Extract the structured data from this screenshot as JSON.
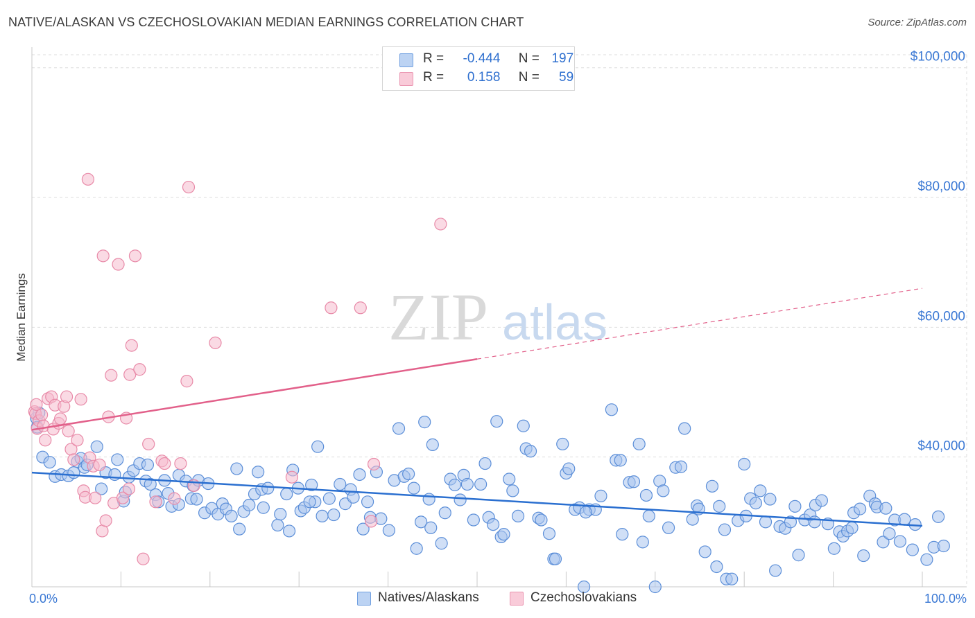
{
  "title": "NATIVE/ALASKAN VS CZECHOSLOVAKIAN MEDIAN EARNINGS CORRELATION CHART",
  "source": "Source: ZipAtlas.com",
  "watermark": {
    "zip": "ZIP",
    "atlas": "atlas"
  },
  "legend": {
    "rows": [
      {
        "r_label": "R =",
        "r_value": "-0.444",
        "n_label": "N =",
        "n_value": "197"
      },
      {
        "r_label": "R =",
        "r_value": "0.158",
        "n_label": "N =",
        "n_value": "59"
      }
    ]
  },
  "colors": {
    "blue_fill": "#a9c5ef",
    "blue_stroke": "#5b8ed8",
    "blue_line": "#2a6fd0",
    "pink_fill": "#f6bccd",
    "pink_stroke": "#e88aa8",
    "pink_line": "#e2608a",
    "axis_label": "#3a78d4",
    "grid": "#dddddd"
  },
  "chart_data": {
    "type": "scatter",
    "title": "NATIVE/ALASKAN VS CZECHOSLOVAKIAN MEDIAN EARNINGS CORRELATION CHART",
    "xlabel": "",
    "ylabel": "Median Earnings",
    "xlim": [
      0,
      100
    ],
    "ylim": [
      20000,
      102000
    ],
    "x_tick_labels": [
      "0.0%",
      "100.0%"
    ],
    "y_ticks": [
      40000,
      60000,
      80000,
      100000
    ],
    "y_tick_labels": [
      "$40,000",
      "$60,000",
      "$80,000",
      "$100,000"
    ],
    "grid": true,
    "legend_position": "top-center",
    "series": [
      {
        "name": "Natives/Alaskans",
        "color": "#a9c5ef",
        "R": -0.444,
        "N": 197,
        "trend": {
          "x": [
            0,
            100
          ],
          "y": [
            37600,
            29400
          ],
          "dashed_from": null
        },
        "points": [
          [
            0.5,
            46000
          ],
          [
            0.6,
            44600
          ],
          [
            0.8,
            46800
          ],
          [
            1.2,
            40000
          ],
          [
            2,
            39200
          ],
          [
            2.6,
            37000
          ],
          [
            3.3,
            37300
          ],
          [
            4.1,
            37100
          ],
          [
            4.7,
            37600
          ],
          [
            5.1,
            39300
          ],
          [
            5.5,
            39800
          ],
          [
            5.9,
            38400
          ],
          [
            6.2,
            38800
          ],
          [
            7.3,
            41600
          ],
          [
            7.8,
            35100
          ],
          [
            8.3,
            37600
          ],
          [
            9.3,
            37300
          ],
          [
            9.6,
            39600
          ],
          [
            10.3,
            33200
          ],
          [
            10.5,
            34600
          ],
          [
            10.9,
            36900
          ],
          [
            11.4,
            37900
          ],
          [
            12.1,
            39000
          ],
          [
            12.8,
            36300
          ],
          [
            13,
            38800
          ],
          [
            13.3,
            35800
          ],
          [
            13.9,
            34200
          ],
          [
            14.2,
            33100
          ],
          [
            14.9,
            36400
          ],
          [
            15.3,
            34400
          ],
          [
            15.7,
            32400
          ],
          [
            16.5,
            32700
          ],
          [
            16.5,
            37200
          ],
          [
            17.3,
            36300
          ],
          [
            17.9,
            33600
          ],
          [
            18.1,
            35600
          ],
          [
            18.7,
            36400
          ],
          [
            19.4,
            31400
          ],
          [
            19.8,
            35900
          ],
          [
            20.2,
            32100
          ],
          [
            20.9,
            31200
          ],
          [
            21.4,
            32800
          ],
          [
            21.8,
            32000
          ],
          [
            22.4,
            30900
          ],
          [
            23,
            38200
          ],
          [
            23.3,
            28900
          ],
          [
            23.8,
            31600
          ],
          [
            24.4,
            32600
          ],
          [
            25,
            34300
          ],
          [
            25.4,
            37700
          ],
          [
            25.8,
            35000
          ],
          [
            26,
            32200
          ],
          [
            26.5,
            35200
          ],
          [
            27.6,
            29500
          ],
          [
            27.9,
            31200
          ],
          [
            28.6,
            34300
          ],
          [
            28.9,
            28600
          ],
          [
            29.3,
            38000
          ],
          [
            29.9,
            35200
          ],
          [
            30.2,
            31700
          ],
          [
            30.6,
            32200
          ],
          [
            31.4,
            35700
          ],
          [
            31.8,
            33100
          ],
          [
            32.1,
            41600
          ],
          [
            32.6,
            30900
          ],
          [
            33.4,
            33600
          ],
          [
            33.9,
            31100
          ],
          [
            34.6,
            35800
          ],
          [
            35.2,
            32800
          ],
          [
            35.8,
            35000
          ],
          [
            36.1,
            33800
          ],
          [
            36.8,
            37300
          ],
          [
            37.2,
            28900
          ],
          [
            37.7,
            33100
          ],
          [
            38,
            30700
          ],
          [
            38.7,
            37700
          ],
          [
            39.2,
            30500
          ],
          [
            40.1,
            28700
          ],
          [
            40.7,
            36400
          ],
          [
            41.2,
            44400
          ],
          [
            41.8,
            37000
          ],
          [
            42.3,
            37400
          ],
          [
            42.9,
            35200
          ],
          [
            43.2,
            25900
          ],
          [
            43.7,
            30000
          ],
          [
            44.1,
            45400
          ],
          [
            44.6,
            33500
          ],
          [
            45,
            41900
          ],
          [
            46,
            26700
          ],
          [
            46.4,
            31400
          ],
          [
            47,
            36600
          ],
          [
            47.5,
            35700
          ],
          [
            48.1,
            33400
          ],
          [
            48.5,
            37200
          ],
          [
            48.9,
            35800
          ],
          [
            49.6,
            30300
          ],
          [
            50.4,
            35800
          ],
          [
            50.9,
            39000
          ],
          [
            51.3,
            30700
          ],
          [
            51.8,
            29600
          ],
          [
            52.2,
            45500
          ],
          [
            52.7,
            27700
          ],
          [
            53,
            28100
          ],
          [
            53.6,
            36600
          ],
          [
            54,
            34800
          ],
          [
            54.6,
            30900
          ],
          [
            55.2,
            44800
          ],
          [
            55.5,
            41300
          ],
          [
            56,
            40900
          ],
          [
            56.9,
            30600
          ],
          [
            57.2,
            30300
          ],
          [
            58.1,
            28200
          ],
          [
            58.6,
            24300
          ],
          [
            58.8,
            24300
          ],
          [
            59.6,
            42000
          ],
          [
            60,
            37500
          ],
          [
            60.3,
            38200
          ],
          [
            61,
            31900
          ],
          [
            61.5,
            32200
          ],
          [
            62,
            20000
          ],
          [
            62.6,
            31900
          ],
          [
            63.3,
            31900
          ],
          [
            63.9,
            34000
          ],
          [
            65.1,
            47300
          ],
          [
            65.6,
            39500
          ],
          [
            66.1,
            39500
          ],
          [
            66.3,
            28100
          ],
          [
            67.1,
            36100
          ],
          [
            67.6,
            36200
          ],
          [
            68.2,
            42000
          ],
          [
            68.6,
            26900
          ],
          [
            69,
            34100
          ],
          [
            69.3,
            30900
          ],
          [
            70,
            20000
          ],
          [
            70.5,
            36300
          ],
          [
            70.9,
            34800
          ],
          [
            71.5,
            29100
          ],
          [
            72.3,
            38400
          ],
          [
            72.9,
            38500
          ],
          [
            73.3,
            44400
          ],
          [
            74.2,
            30400
          ],
          [
            74.7,
            32500
          ],
          [
            74.9,
            32000
          ],
          [
            75.6,
            25400
          ],
          [
            76.4,
            35500
          ],
          [
            76.9,
            23100
          ],
          [
            77.2,
            32400
          ],
          [
            77.8,
            28800
          ],
          [
            78,
            21200
          ],
          [
            78.6,
            21200
          ],
          [
            79.3,
            30200
          ],
          [
            80,
            38900
          ],
          [
            80.2,
            30900
          ],
          [
            80.7,
            33600
          ],
          [
            81.3,
            32900
          ],
          [
            81.8,
            34800
          ],
          [
            82.4,
            30000
          ],
          [
            82.9,
            33500
          ],
          [
            83.5,
            22500
          ],
          [
            84,
            29300
          ],
          [
            84.6,
            29000
          ],
          [
            85.2,
            30000
          ],
          [
            85.7,
            32400
          ],
          [
            86.1,
            24900
          ],
          [
            86.8,
            30300
          ],
          [
            87.4,
            31100
          ],
          [
            88,
            32600
          ],
          [
            88.7,
            33300
          ],
          [
            89.4,
            29700
          ],
          [
            90.1,
            25900
          ],
          [
            90.7,
            28500
          ],
          [
            91.1,
            27800
          ],
          [
            91.6,
            28600
          ],
          [
            92.3,
            31400
          ],
          [
            93,
            32000
          ],
          [
            93.4,
            24800
          ],
          [
            94.1,
            34000
          ],
          [
            94.7,
            32800
          ],
          [
            94.9,
            32300
          ],
          [
            95.6,
            26900
          ],
          [
            95.9,
            32100
          ],
          [
            96.3,
            28200
          ],
          [
            96.9,
            30300
          ],
          [
            97.5,
            27000
          ],
          [
            98,
            30400
          ],
          [
            98.9,
            25700
          ],
          [
            99.2,
            29600
          ],
          [
            100.5,
            24200
          ],
          [
            101.3,
            26100
          ],
          [
            101.8,
            30800
          ],
          [
            102.4,
            26300
          ],
          [
            92.1,
            29100
          ],
          [
            87.9,
            30000
          ],
          [
            62.2,
            31500
          ],
          [
            44.8,
            29100
          ],
          [
            31.2,
            33100
          ],
          [
            18.5,
            33500
          ]
        ]
      },
      {
        "name": "Czechoslovakians",
        "color": "#f6bccd",
        "R": 0.158,
        "N": 59,
        "trend": {
          "x": [
            0,
            100
          ],
          "y": [
            44200,
            66000
          ],
          "dashed_from": 50
        },
        "points": [
          [
            0.3,
            47000
          ],
          [
            0.4,
            46700
          ],
          [
            0.5,
            48100
          ],
          [
            0.6,
            44400
          ],
          [
            0.8,
            45600
          ],
          [
            1.1,
            46500
          ],
          [
            1.3,
            44800
          ],
          [
            1.5,
            42600
          ],
          [
            1.8,
            49000
          ],
          [
            2.2,
            49300
          ],
          [
            2.4,
            44300
          ],
          [
            2.6,
            48000
          ],
          [
            3,
            45200
          ],
          [
            3.2,
            45900
          ],
          [
            3.6,
            47800
          ],
          [
            3.9,
            49300
          ],
          [
            4.1,
            44000
          ],
          [
            4.4,
            41200
          ],
          [
            4.7,
            39600
          ],
          [
            5.1,
            42600
          ],
          [
            5.5,
            48900
          ],
          [
            5.8,
            34800
          ],
          [
            6,
            33800
          ],
          [
            6.3,
            82800
          ],
          [
            6.5,
            39900
          ],
          [
            6.9,
            38600
          ],
          [
            7.1,
            33700
          ],
          [
            7.6,
            38800
          ],
          [
            7.9,
            28600
          ],
          [
            8,
            71000
          ],
          [
            8.3,
            30200
          ],
          [
            8.6,
            46200
          ],
          [
            8.9,
            52600
          ],
          [
            9.2,
            32900
          ],
          [
            9.7,
            69700
          ],
          [
            10.2,
            33700
          ],
          [
            10.6,
            46000
          ],
          [
            11,
            52700
          ],
          [
            11.2,
            57200
          ],
          [
            11.6,
            71000
          ],
          [
            12.1,
            53500
          ],
          [
            12.5,
            24300
          ],
          [
            13.1,
            42000
          ],
          [
            13.9,
            33100
          ],
          [
            14.6,
            39400
          ],
          [
            14.9,
            39000
          ],
          [
            16,
            33600
          ],
          [
            16.7,
            39000
          ],
          [
            17.4,
            51700
          ],
          [
            17.6,
            81600
          ],
          [
            20.6,
            57600
          ],
          [
            29.2,
            36900
          ],
          [
            33.6,
            63000
          ],
          [
            36.9,
            63000
          ],
          [
            38.4,
            38900
          ],
          [
            45.9,
            75900
          ],
          [
            10.9,
            35100
          ],
          [
            18.2,
            35600
          ],
          [
            38.1,
            30100
          ]
        ]
      }
    ]
  }
}
